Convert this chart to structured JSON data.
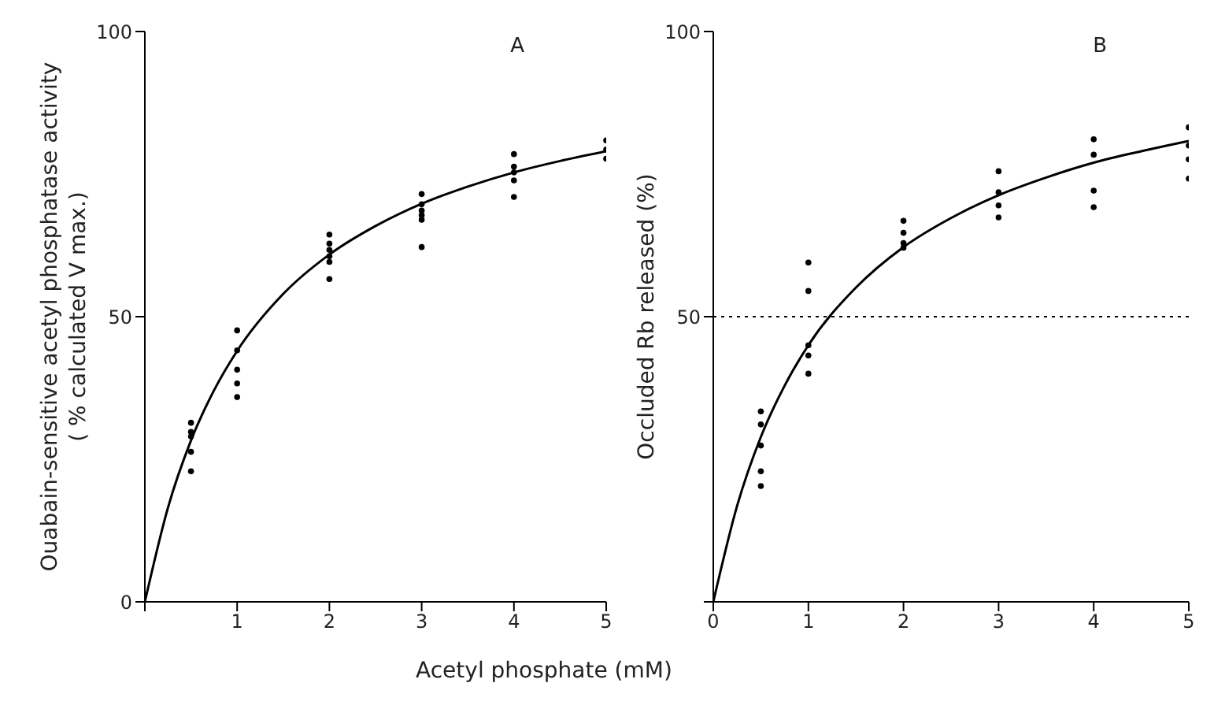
{
  "chart_data": [
    {
      "type": "scatter",
      "xlabel": "Acetyl phosphate (mM)",
      "ylabel": "Ouabain-sensitive acetyl phosphatase activity\n( % calculated  V max.)",
      "annotations": [
        "A"
      ],
      "xlim": [
        0,
        5
      ],
      "ylim": [
        0,
        100
      ],
      "xticks": [
        {
          "value": 0,
          "label": null
        },
        1,
        2,
        3,
        4,
        5
      ],
      "yticks": [
        0,
        50,
        100
      ],
      "grid": false,
      "legend": false,
      "series": [
        {
          "type": "scatter",
          "marker": "circle",
          "color": "#000000",
          "x": [
            0.5,
            0.5,
            0.5,
            0.5,
            0.5,
            1,
            1,
            1,
            1,
            1,
            2,
            2,
            2,
            2,
            2,
            2,
            3,
            3,
            3,
            3,
            3,
            3,
            4,
            4,
            4,
            4,
            4,
            5,
            5,
            5
          ],
          "values": [
            31.4,
            29.8,
            29.0,
            26.3,
            22.9,
            47.6,
            44.1,
            40.7,
            38.3,
            35.9,
            64.4,
            62.8,
            61.7,
            60.6,
            59.6,
            56.6,
            71.5,
            69.7,
            68.6,
            67.8,
            67.0,
            62.2,
            78.5,
            76.3,
            75.3,
            73.9,
            71.0,
            80.9,
            79.3,
            77.7
          ]
        },
        {
          "type": "line",
          "marker": "none",
          "color": "#000000",
          "x": [
            0,
            0.25,
            0.5,
            0.75,
            1,
            1.5,
            2,
            2.5,
            3,
            3.5,
            4,
            4.5,
            5
          ],
          "values": [
            0,
            16.5,
            28.3,
            37.1,
            44.0,
            54.0,
            60.9,
            65.9,
            69.8,
            72.8,
            75.3,
            77.3,
            79.0
          ]
        }
      ]
    },
    {
      "type": "scatter",
      "ylabel": "Occluded  Rb  released  (%)",
      "annotations": [
        "B"
      ],
      "xlim": [
        0,
        5
      ],
      "ylim": [
        0,
        100
      ],
      "xticks": [
        0,
        1,
        2,
        3,
        4,
        5
      ],
      "yticks": [
        {
          "value": 0,
          "label": null
        },
        50,
        100
      ],
      "grid": false,
      "legend": false,
      "ref_lines": [
        {
          "axis": "y",
          "value": 50,
          "label": null,
          "color": "#000000",
          "line_style": "dotted"
        }
      ],
      "series": [
        {
          "type": "scatter",
          "marker": "circle",
          "color": "#000000",
          "x": [
            0.5,
            0.5,
            0.5,
            0.5,
            0.5,
            1,
            1,
            1,
            1,
            1,
            2,
            2,
            2,
            2,
            3,
            3,
            3,
            3,
            4,
            4,
            4,
            4,
            5,
            5,
            5,
            5
          ],
          "values": [
            33.4,
            31.1,
            27.4,
            22.9,
            20.3,
            59.5,
            54.5,
            45.0,
            43.2,
            40.0,
            66.8,
            64.7,
            62.9,
            62.1,
            75.5,
            71.8,
            69.5,
            67.4,
            81.1,
            78.4,
            72.1,
            69.2,
            83.2,
            80.0,
            77.6,
            74.2
          ]
        },
        {
          "type": "line",
          "marker": "none",
          "color": "#000000",
          "x": [
            0,
            0.25,
            0.5,
            0.75,
            1,
            1.5,
            2,
            2.5,
            3,
            3.5,
            4,
            4.5,
            5
          ],
          "values": [
            0,
            16.8,
            28.9,
            37.9,
            45.0,
            55.1,
            62.2,
            67.3,
            71.3,
            74.4,
            77.0,
            79.0,
            80.8
          ]
        }
      ]
    }
  ]
}
